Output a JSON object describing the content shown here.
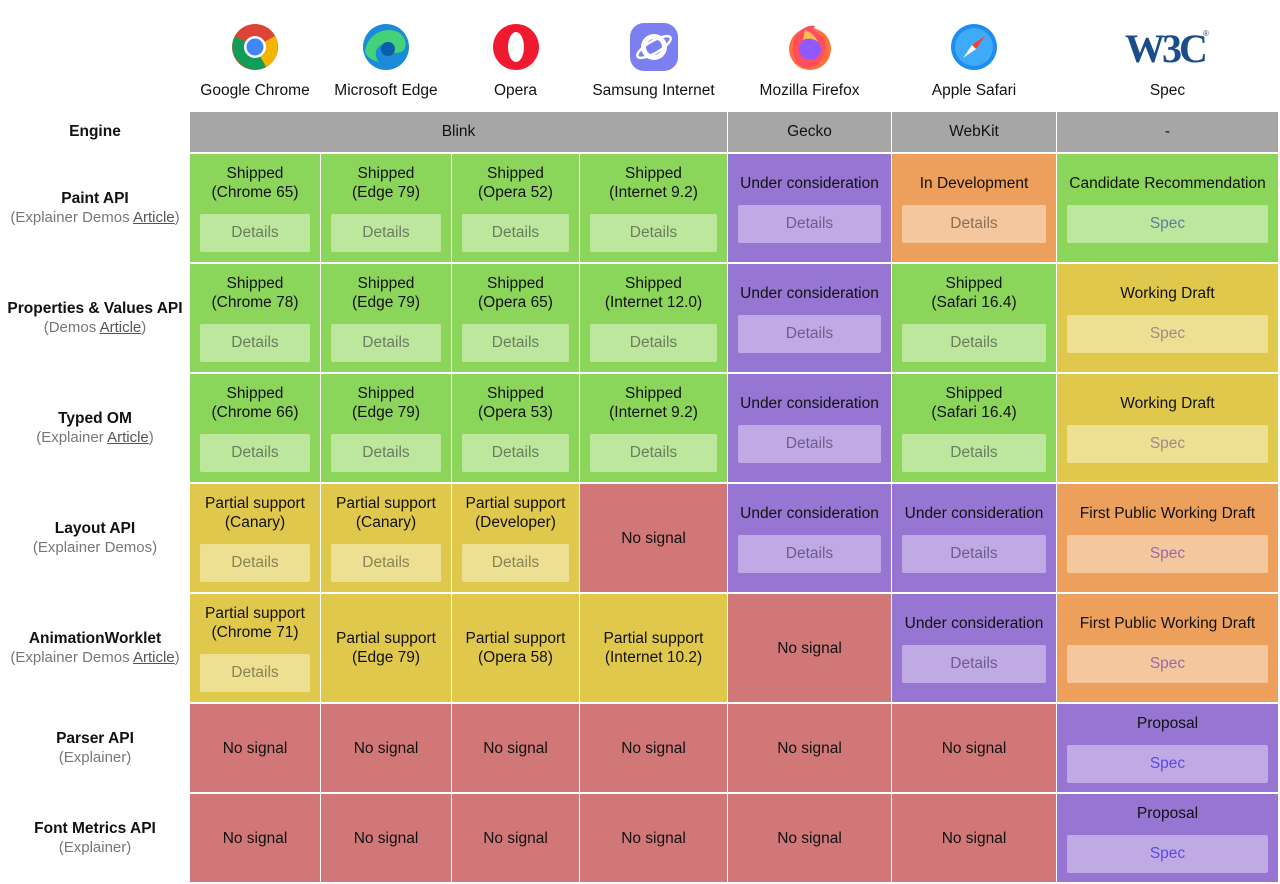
{
  "browsers": [
    {
      "name": "Google Chrome",
      "icon": "chrome-icon"
    },
    {
      "name": "Microsoft Edge",
      "icon": "edge-icon"
    },
    {
      "name": "Opera",
      "icon": "opera-icon"
    },
    {
      "name": "Samsung Internet",
      "icon": "samsung-internet-icon"
    },
    {
      "name": "Mozilla Firefox",
      "icon": "firefox-icon"
    },
    {
      "name": "Apple Safari",
      "icon": "safari-icon"
    },
    {
      "name": "Spec",
      "icon": "w3c-logo-icon",
      "logo_text": "W3C"
    }
  ],
  "engine_label": "Engine",
  "engines": [
    "Blink",
    "Gecko",
    "WebKit",
    "-"
  ],
  "colors": {
    "shipped": "#8bd55b",
    "partial": "#e0c84d",
    "consideration": "#9676d2",
    "development": "#eda05c",
    "no_signal": "#d27777",
    "engine_bar": "#a6a6a6"
  },
  "features": [
    {
      "name": "Paint API",
      "links": [
        "Explainer",
        "Demos",
        "Article"
      ],
      "cells": [
        {
          "status": "Shipped\n(Chrome 65)",
          "type": "shipped",
          "button": "Details"
        },
        {
          "status": "Shipped\n(Edge 79)",
          "type": "shipped",
          "button": "Details"
        },
        {
          "status": "Shipped\n(Opera 52)",
          "type": "shipped",
          "button": "Details"
        },
        {
          "status": "Shipped\n(Internet 9.2)",
          "type": "shipped",
          "button": "Details"
        },
        {
          "status": "Under consideration",
          "type": "consideration",
          "button": "Details"
        },
        {
          "status": "In Development",
          "type": "development",
          "button": "Details"
        },
        {
          "status": "Candidate Recommendation",
          "type": "shipped",
          "button": "Spec",
          "spec": "green"
        }
      ]
    },
    {
      "name": "Properties & Values API",
      "links": [
        "Demos",
        "Article"
      ],
      "cells": [
        {
          "status": "Shipped\n(Chrome 78)",
          "type": "shipped",
          "button": "Details"
        },
        {
          "status": "Shipped\n(Edge 79)",
          "type": "shipped",
          "button": "Details"
        },
        {
          "status": "Shipped\n(Opera 65)",
          "type": "shipped",
          "button": "Details"
        },
        {
          "status": "Shipped\n(Internet 12.0)",
          "type": "shipped",
          "button": "Details"
        },
        {
          "status": "Under consideration",
          "type": "consideration",
          "button": "Details"
        },
        {
          "status": "Shipped\n(Safari 16.4)",
          "type": "shipped",
          "button": "Details"
        },
        {
          "status": "Working Draft",
          "type": "partial",
          "button": "Spec",
          "spec": "yellow"
        }
      ]
    },
    {
      "name": "Typed OM",
      "links": [
        "Explainer",
        "Article"
      ],
      "cells": [
        {
          "status": "Shipped\n(Chrome 66)",
          "type": "shipped",
          "button": "Details"
        },
        {
          "status": "Shipped\n(Edge 79)",
          "type": "shipped",
          "button": "Details"
        },
        {
          "status": "Shipped\n(Opera 53)",
          "type": "shipped",
          "button": "Details"
        },
        {
          "status": "Shipped\n(Internet 9.2)",
          "type": "shipped",
          "button": "Details"
        },
        {
          "status": "Under consideration",
          "type": "consideration",
          "button": "Details"
        },
        {
          "status": "Shipped\n(Safari 16.4)",
          "type": "shipped",
          "button": "Details"
        },
        {
          "status": "Working Draft",
          "type": "partial",
          "button": "Spec",
          "spec": "yellow"
        }
      ]
    },
    {
      "name": "Layout API",
      "links": [
        "Explainer",
        "Demos"
      ],
      "cells": [
        {
          "status": "Partial support\n(Canary)",
          "type": "partial",
          "button": "Details"
        },
        {
          "status": "Partial support\n(Canary)",
          "type": "partial",
          "button": "Details"
        },
        {
          "status": "Partial support\n(Developer)",
          "type": "partial",
          "button": "Details"
        },
        {
          "status": "No signal",
          "type": "no_signal"
        },
        {
          "status": "Under consideration",
          "type": "consideration",
          "button": "Details"
        },
        {
          "status": "Under consideration",
          "type": "consideration",
          "button": "Details"
        },
        {
          "status": "First Public Working Draft",
          "type": "development",
          "button": "Spec",
          "spec": "orange"
        }
      ]
    },
    {
      "name": "AnimationWorklet",
      "links": [
        "Explainer",
        "Demos",
        "Article"
      ],
      "cells": [
        {
          "status": "Partial support\n(Chrome 71)",
          "type": "partial",
          "button": "Details"
        },
        {
          "status": "Partial support\n(Edge 79)",
          "type": "partial"
        },
        {
          "status": "Partial support\n(Opera 58)",
          "type": "partial"
        },
        {
          "status": "Partial support\n(Internet 10.2)",
          "type": "partial"
        },
        {
          "status": "No signal",
          "type": "no_signal"
        },
        {
          "status": "Under consideration",
          "type": "consideration",
          "button": "Details"
        },
        {
          "status": "First Public Working Draft",
          "type": "development",
          "button": "Spec",
          "spec": "orange"
        }
      ]
    },
    {
      "name": "Parser API",
      "links": [
        "Explainer"
      ],
      "cells": [
        {
          "status": "No signal",
          "type": "no_signal"
        },
        {
          "status": "No signal",
          "type": "no_signal"
        },
        {
          "status": "No signal",
          "type": "no_signal"
        },
        {
          "status": "No signal",
          "type": "no_signal"
        },
        {
          "status": "No signal",
          "type": "no_signal"
        },
        {
          "status": "No signal",
          "type": "no_signal"
        },
        {
          "status": "Proposal",
          "type": "consideration",
          "button": "Spec",
          "spec": "purple"
        }
      ]
    },
    {
      "name": "Font Metrics API",
      "links": [
        "Explainer"
      ],
      "cells": [
        {
          "status": "No signal",
          "type": "no_signal"
        },
        {
          "status": "No signal",
          "type": "no_signal"
        },
        {
          "status": "No signal",
          "type": "no_signal"
        },
        {
          "status": "No signal",
          "type": "no_signal"
        },
        {
          "status": "No signal",
          "type": "no_signal"
        },
        {
          "status": "No signal",
          "type": "no_signal"
        },
        {
          "status": "Proposal",
          "type": "consideration",
          "button": "Spec",
          "spec": "purple"
        }
      ]
    }
  ]
}
